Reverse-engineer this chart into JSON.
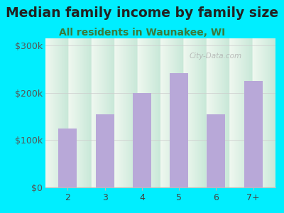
{
  "title": "Median family income by family size",
  "subtitle": "All residents in Waunakee, WI",
  "categories": [
    "2",
    "3",
    "4",
    "5",
    "6",
    "7+"
  ],
  "values": [
    125000,
    155000,
    200000,
    242000,
    155000,
    225000
  ],
  "bar_color": "#b8a8d8",
  "background_outer": "#00eeff",
  "yticks": [
    0,
    100000,
    200000,
    300000
  ],
  "ytick_labels": [
    "$0",
    "$100k",
    "$200k",
    "$300k"
  ],
  "ylim": [
    0,
    315000
  ],
  "title_fontsize": 13.5,
  "subtitle_fontsize": 10,
  "tick_fontsize": 9,
  "title_color": "#222222",
  "subtitle_color": "#3a7a3a",
  "watermark": "City-Data.com",
  "inner_top_color": "#f0f8f0",
  "inner_bottom_color": "#c8e8d8"
}
